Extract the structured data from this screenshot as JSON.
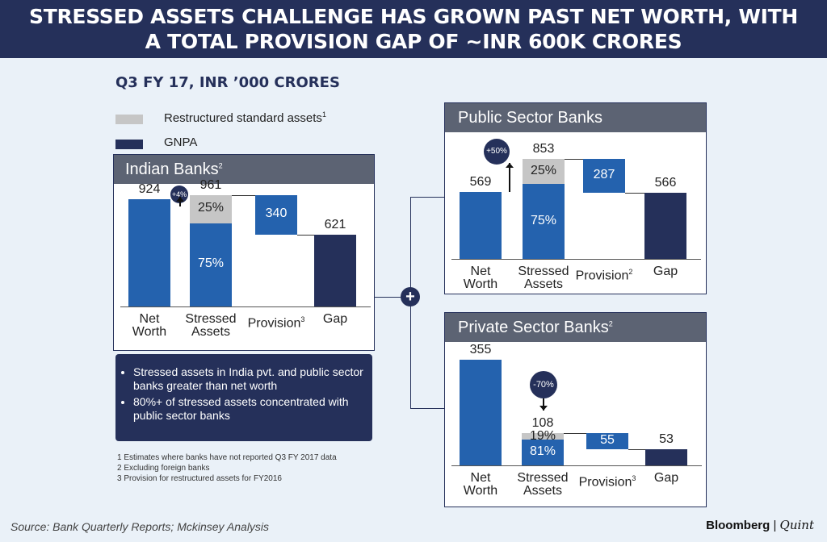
{
  "title": {
    "line1": "STRESSED ASSETS CHALLENGE HAS GROWN PAST NET WORTH, WITH",
    "line2": "A TOTAL PROVISION  GAP OF ~INR 600K CRORES"
  },
  "subtitle": "Q3 FY 17, INR ’000 CRORES",
  "legend": [
    {
      "label": "Restructured standard assets",
      "sup": "1",
      "color": "#c6c6c6"
    },
    {
      "label": "GNPA",
      "sup": "",
      "color": "#25305a"
    }
  ],
  "colors": {
    "blue": "#2462ae",
    "navy": "#25305a",
    "grey": "#c6c6c6",
    "header": "#5c6373"
  },
  "chart_data": [
    {
      "type": "bar",
      "title": "Indian Banks",
      "title_sup": "2",
      "categories": [
        "Net Worth",
        "Stressed Assets",
        "Provision",
        "Gap"
      ],
      "category_sups": [
        "",
        "",
        "3",
        ""
      ],
      "values": [
        924,
        961,
        340,
        621
      ],
      "stressed_split": {
        "restructured_pct": "25%",
        "gnpa_pct": "75%"
      },
      "change_badge": "+4%",
      "labels": [
        "924",
        "961",
        "340",
        "621"
      ]
    },
    {
      "type": "bar",
      "title": "Public Sector Banks",
      "title_sup": "",
      "categories": [
        "Net Worth",
        "Stressed Assets",
        "Provision",
        "Gap"
      ],
      "category_sups": [
        "",
        "",
        "2",
        ""
      ],
      "values": [
        569,
        853,
        287,
        566
      ],
      "stressed_split": {
        "restructured_pct": "25%",
        "gnpa_pct": "75%"
      },
      "change_badge": "+50%",
      "labels": [
        "569",
        "853",
        "287",
        "566"
      ]
    },
    {
      "type": "bar",
      "title": "Private Sector Banks",
      "title_sup": "2",
      "categories": [
        "Net Worth",
        "Stressed Assets",
        "Provision",
        "Gap"
      ],
      "category_sups": [
        "",
        "",
        "3",
        ""
      ],
      "values": [
        355,
        108,
        55,
        53
      ],
      "stressed_split": {
        "restructured_pct": "19%",
        "gnpa_pct": "81%"
      },
      "change_badge": "-70%",
      "labels": [
        "355",
        "108",
        "55",
        "53"
      ]
    }
  ],
  "notes": [
    "Stressed assets in India pvt. and public sector banks greater than net worth",
    "80%+ of stressed assets concentrated with public sector banks"
  ],
  "footnotes": [
    "1  Estimates where banks have not reported Q3 FY 2017 data",
    "2  Excluding foreign banks",
    "3  Provision for restructured assets for FY2016"
  ],
  "source": "Source: Bank Quarterly Reports; Mckinsey Analysis",
  "brand": {
    "name": "Bloomberg",
    "sep": "|",
    "suffix": "Quint"
  }
}
